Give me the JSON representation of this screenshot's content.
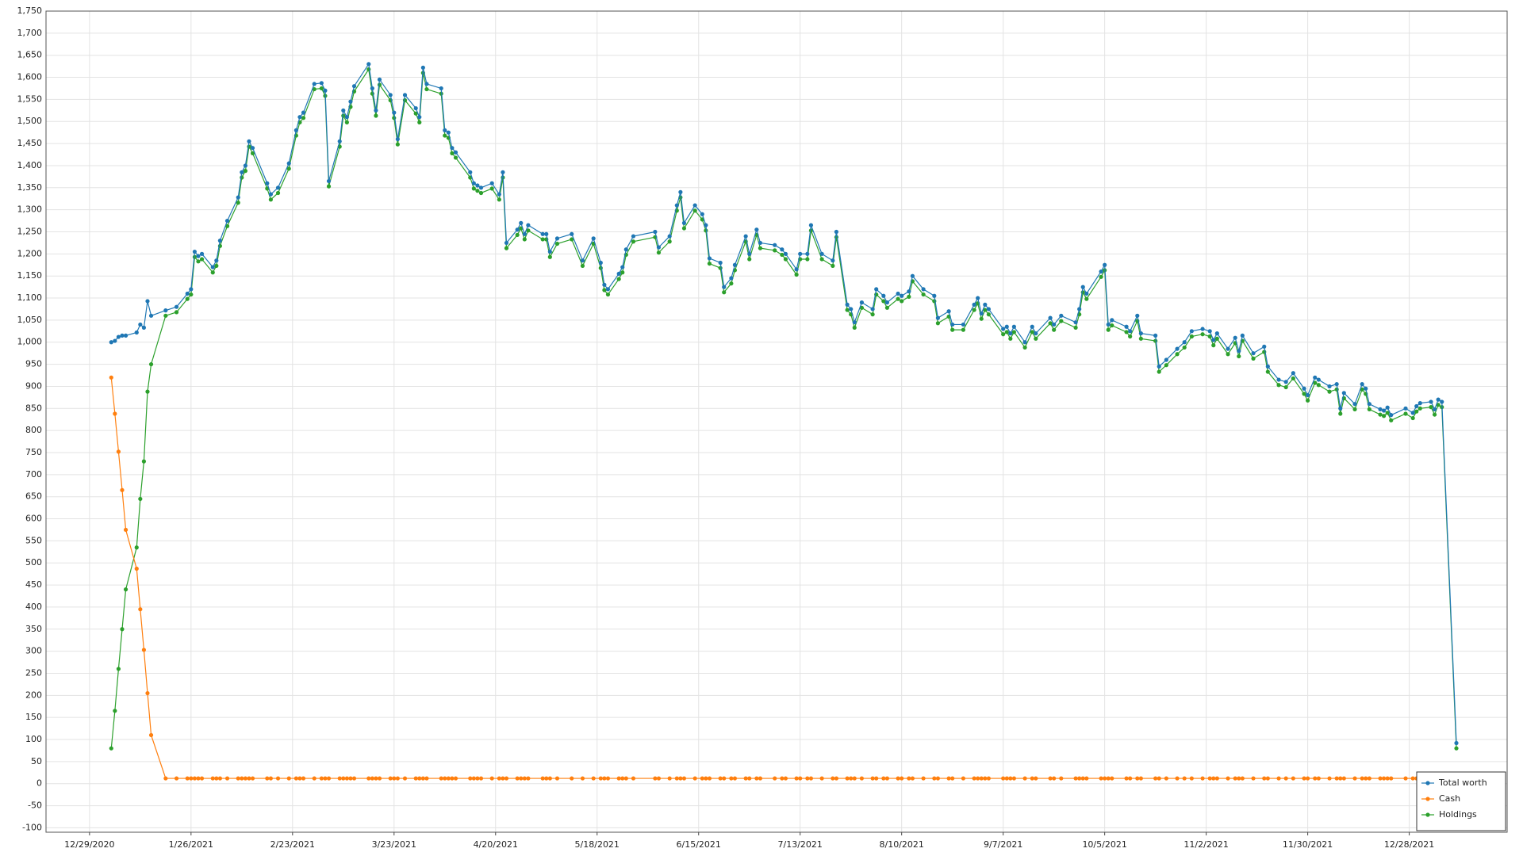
{
  "chart_data": {
    "type": "line",
    "x": [
      "1/4/2021",
      "1/5/2021",
      "1/6/2021",
      "1/7/2021",
      "1/8/2021",
      "1/11/2021",
      "1/12/2021",
      "1/13/2021",
      "1/14/2021",
      "1/15/2021",
      "1/19/2021",
      "1/22/2021",
      "1/25/2021",
      "1/26/2021",
      "1/27/2021",
      "1/28/2021",
      "1/29/2021",
      "2/1/2021",
      "2/2/2021",
      "2/3/2021",
      "2/5/2021",
      "2/8/2021",
      "2/9/2021",
      "2/10/2021",
      "2/11/2021",
      "2/12/2021",
      "2/16/2021",
      "2/17/2021",
      "2/19/2021",
      "2/22/2021",
      "2/24/2021",
      "2/25/2021",
      "2/26/2021",
      "3/1/2021",
      "3/3/2021",
      "3/4/2021",
      "3/5/2021",
      "3/8/2021",
      "3/9/2021",
      "3/10/2021",
      "3/11/2021",
      "3/12/2021",
      "3/16/2021",
      "3/17/2021",
      "3/18/2021",
      "3/19/2021",
      "3/22/2021",
      "3/23/2021",
      "3/24/2021",
      "3/26/2021",
      "3/29/2021",
      "3/30/2021",
      "3/31/2021",
      "4/1/2021",
      "4/5/2021",
      "4/6/2021",
      "4/7/2021",
      "4/8/2021",
      "4/9/2021",
      "4/13/2021",
      "4/14/2021",
      "4/15/2021",
      "4/16/2021",
      "4/19/2021",
      "4/21/2021",
      "4/22/2021",
      "4/23/2021",
      "4/26/2021",
      "4/27/2021",
      "4/28/2021",
      "4/29/2021",
      "5/3/2021",
      "5/4/2021",
      "5/5/2021",
      "5/7/2021",
      "5/11/2021",
      "5/14/2021",
      "5/17/2021",
      "5/19/2021",
      "5/20/2021",
      "5/21/2021",
      "5/24/2021",
      "5/25/2021",
      "5/26/2021",
      "5/28/2021",
      "6/3/2021",
      "6/4/2021",
      "6/7/2021",
      "6/9/2021",
      "6/10/2021",
      "6/11/2021",
      "6/14/2021",
      "6/16/2021",
      "6/17/2021",
      "6/18/2021",
      "6/21/2021",
      "6/22/2021",
      "6/24/2021",
      "6/25/2021",
      "6/28/2021",
      "6/29/2021",
      "7/1/2021",
      "7/2/2021",
      "7/6/2021",
      "7/8/2021",
      "7/9/2021",
      "7/12/2021",
      "7/13/2021",
      "7/15/2021",
      "7/16/2021",
      "7/19/2021",
      "7/22/2021",
      "7/23/2021",
      "7/26/2021",
      "7/27/2021",
      "7/28/2021",
      "7/30/2021",
      "8/2/2021",
      "8/3/2021",
      "8/5/2021",
      "8/6/2021",
      "8/9/2021",
      "8/10/2021",
      "8/12/2021",
      "8/13/2021",
      "8/16/2021",
      "8/19/2021",
      "8/20/2021",
      "8/23/2021",
      "8/24/2021",
      "8/27/2021",
      "8/30/2021",
      "8/31/2021",
      "9/1/2021",
      "9/2/2021",
      "9/3/2021",
      "9/7/2021",
      "9/8/2021",
      "9/9/2021",
      "9/10/2021",
      "9/13/2021",
      "9/15/2021",
      "9/16/2021",
      "9/20/2021",
      "9/21/2021",
      "9/23/2021",
      "9/27/2021",
      "9/28/2021",
      "9/29/2021",
      "9/30/2021",
      "10/4/2021",
      "10/5/2021",
      "10/6/2021",
      "10/7/2021",
      "10/11/2021",
      "10/12/2021",
      "10/14/2021",
      "10/15/2021",
      "10/19/2021",
      "10/20/2021",
      "10/22/2021",
      "10/25/2021",
      "10/27/2021",
      "10/29/2021",
      "11/1/2021",
      "11/3/2021",
      "11/4/2021",
      "11/5/2021",
      "11/8/2021",
      "11/10/2021",
      "11/11/2021",
      "11/12/2021",
      "11/15/2021",
      "11/18/2021",
      "11/19/2021",
      "11/22/2021",
      "11/24/2021",
      "11/26/2021",
      "11/29/2021",
      "11/30/2021",
      "12/2/2021",
      "12/3/2021",
      "12/6/2021",
      "12/8/2021",
      "12/9/2021",
      "12/10/2021",
      "12/13/2021",
      "12/15/2021",
      "12/16/2021",
      "12/17/2021",
      "12/20/2021",
      "12/21/2021",
      "12/22/2021",
      "12/23/2021",
      "12/27/2021",
      "12/29/2021",
      "12/30/2021",
      "12/31/2021",
      "1/3/2022",
      "1/4/2022",
      "1/5/2022",
      "1/6/2022",
      "1/10/2022"
    ],
    "series": [
      {
        "name": "Total worth",
        "color": "#1f77b4",
        "values": [
          1000,
          1003,
          1012,
          1015,
          1015,
          1022,
          1040,
          1033,
          1093,
          1060,
          1072,
          1080,
          1110,
          1120,
          1205,
          1195,
          1200,
          1170,
          1185,
          1230,
          1275,
          1328,
          1385,
          1400,
          1455,
          1440,
          1360,
          1335,
          1350,
          1405,
          1480,
          1510,
          1520,
          1585,
          1587,
          1570,
          1365,
          1455,
          1525,
          1510,
          1545,
          1580,
          1630,
          1575,
          1525,
          1595,
          1560,
          1520,
          1460,
          1560,
          1530,
          1510,
          1622,
          1585,
          1575,
          1480,
          1475,
          1440,
          1430,
          1385,
          1360,
          1355,
          1350,
          1360,
          1335,
          1385,
          1225,
          1255,
          1270,
          1245,
          1265,
          1245,
          1245,
          1205,
          1235,
          1245,
          1185,
          1235,
          1180,
          1130,
          1120,
          1155,
          1170,
          1210,
          1240,
          1250,
          1215,
          1240,
          1310,
          1340,
          1270,
          1310,
          1290,
          1265,
          1190,
          1180,
          1125,
          1145,
          1175,
          1240,
          1200,
          1255,
          1225,
          1220,
          1210,
          1200,
          1165,
          1200,
          1200,
          1265,
          1200,
          1185,
          1250,
          1085,
          1075,
          1045,
          1090,
          1075,
          1120,
          1105,
          1090,
          1110,
          1105,
          1115,
          1150,
          1120,
          1105,
          1055,
          1070,
          1040,
          1040,
          1085,
          1100,
          1065,
          1085,
          1075,
          1030,
          1035,
          1020,
          1035,
          1000,
          1035,
          1020,
          1055,
          1040,
          1060,
          1045,
          1075,
          1125,
          1110,
          1160,
          1175,
          1040,
          1050,
          1035,
          1025,
          1060,
          1020,
          1015,
          945,
          960,
          985,
          1000,
          1025,
          1030,
          1025,
          1005,
          1020,
          985,
          1010,
          980,
          1015,
          975,
          990,
          945,
          915,
          910,
          930,
          895,
          880,
          920,
          915,
          900,
          905,
          850,
          885,
          860,
          905,
          895,
          860,
          848,
          845,
          852,
          835,
          850,
          840,
          855,
          862,
          865,
          848,
          870,
          865,
          92
        ]
      },
      {
        "name": "Cash",
        "color": "#ff7f0e",
        "values": [
          920,
          838,
          752,
          665,
          575,
          487,
          395,
          303,
          205,
          110,
          12,
          12,
          12,
          12,
          12,
          12,
          12,
          12,
          12,
          12,
          12,
          12,
          12,
          12,
          12,
          12,
          12,
          12,
          12,
          12,
          12,
          12,
          12,
          12,
          12,
          12,
          12,
          12,
          12,
          12,
          12,
          12,
          12,
          12,
          12,
          12,
          12,
          12,
          12,
          12,
          12,
          12,
          12,
          12,
          12,
          12,
          12,
          12,
          12,
          12,
          12,
          12,
          12,
          12,
          12,
          12,
          12,
          12,
          12,
          12,
          12,
          12,
          12,
          12,
          12,
          12,
          12,
          12,
          12,
          12,
          12,
          12,
          12,
          12,
          12,
          12,
          12,
          12,
          12,
          12,
          12,
          12,
          12,
          12,
          12,
          12,
          12,
          12,
          12,
          12,
          12,
          12,
          12,
          12,
          12,
          12,
          12,
          12,
          12,
          12,
          12,
          12,
          12,
          12,
          12,
          12,
          12,
          12,
          12,
          12,
          12,
          12,
          12,
          12,
          12,
          12,
          12,
          12,
          12,
          12,
          12,
          12,
          12,
          12,
          12,
          12,
          12,
          12,
          12,
          12,
          12,
          12,
          12,
          12,
          12,
          12,
          12,
          12,
          12,
          12,
          12,
          12,
          12,
          12,
          12,
          12,
          12,
          12,
          12,
          12,
          12,
          12,
          12,
          12,
          12,
          12,
          12,
          12,
          12,
          12,
          12,
          12,
          12,
          12,
          12,
          12,
          12,
          12,
          12,
          12,
          12,
          12,
          12,
          12,
          12,
          12,
          12,
          12,
          12,
          12,
          12,
          12,
          12,
          12,
          12,
          12,
          12,
          12,
          12,
          12,
          12,
          12,
          12
        ]
      },
      {
        "name": "Holdings",
        "color": "#2ca02c",
        "values": [
          80,
          165,
          260,
          350,
          440,
          535,
          645,
          730,
          888,
          950,
          1060,
          1068,
          1098,
          1108,
          1193,
          1183,
          1188,
          1158,
          1173,
          1218,
          1263,
          1316,
          1373,
          1388,
          1443,
          1428,
          1348,
          1323,
          1338,
          1393,
          1468,
          1498,
          1508,
          1573,
          1575,
          1558,
          1353,
          1443,
          1513,
          1498,
          1533,
          1568,
          1618,
          1563,
          1513,
          1583,
          1548,
          1508,
          1448,
          1548,
          1518,
          1498,
          1610,
          1573,
          1563,
          1468,
          1463,
          1428,
          1418,
          1373,
          1348,
          1343,
          1338,
          1348,
          1323,
          1373,
          1213,
          1243,
          1258,
          1233,
          1253,
          1233,
          1233,
          1193,
          1223,
          1233,
          1173,
          1223,
          1168,
          1118,
          1108,
          1143,
          1158,
          1198,
          1228,
          1238,
          1203,
          1228,
          1298,
          1328,
          1258,
          1298,
          1278,
          1253,
          1178,
          1168,
          1113,
          1133,
          1163,
          1228,
          1188,
          1243,
          1213,
          1208,
          1198,
          1188,
          1153,
          1188,
          1188,
          1253,
          1188,
          1173,
          1238,
          1073,
          1063,
          1033,
          1078,
          1063,
          1108,
          1093,
          1078,
          1098,
          1093,
          1103,
          1138,
          1108,
          1093,
          1043,
          1058,
          1028,
          1028,
          1073,
          1088,
          1053,
          1073,
          1063,
          1018,
          1023,
          1008,
          1023,
          988,
          1023,
          1008,
          1043,
          1028,
          1048,
          1033,
          1063,
          1113,
          1098,
          1148,
          1163,
          1028,
          1038,
          1023,
          1013,
          1048,
          1008,
          1003,
          933,
          948,
          973,
          988,
          1013,
          1018,
          1013,
          993,
          1008,
          973,
          998,
          968,
          1003,
          963,
          978,
          933,
          903,
          898,
          918,
          883,
          868,
          908,
          903,
          888,
          893,
          838,
          873,
          848,
          893,
          883,
          848,
          836,
          833,
          840,
          823,
          838,
          828,
          843,
          850,
          853,
          836,
          858,
          853,
          80
        ]
      }
    ],
    "xlim": [
      "12/17/2020",
      "1/24/2022"
    ],
    "xticks": [
      "12/29/2020",
      "1/26/2021",
      "2/23/2021",
      "3/23/2021",
      "4/20/2021",
      "5/18/2021",
      "6/15/2021",
      "7/13/2021",
      "8/10/2021",
      "9/7/2021",
      "10/5/2021",
      "11/2/2021",
      "11/30/2021",
      "12/28/2021"
    ],
    "ylim": [
      -110,
      1750
    ],
    "yticks": [
      -100,
      -50,
      0,
      50,
      100,
      150,
      200,
      250,
      300,
      350,
      400,
      450,
      500,
      550,
      600,
      650,
      700,
      750,
      800,
      850,
      900,
      950,
      {
        "value": 1000,
        "label": "1,000"
      },
      {
        "value": 1050,
        "label": "1,050"
      },
      {
        "value": 1100,
        "label": "1,100"
      },
      {
        "value": 1150,
        "label": "1,150"
      },
      {
        "value": 1200,
        "label": "1,200"
      },
      {
        "value": 1250,
        "label": "1,250"
      },
      {
        "value": 1300,
        "label": "1,300"
      },
      {
        "value": 1350,
        "label": "1,350"
      },
      {
        "value": 1400,
        "label": "1,400"
      },
      {
        "value": 1450,
        "label": "1,450"
      },
      {
        "value": 1500,
        "label": "1,500"
      },
      {
        "value": 1550,
        "label": "1,550"
      },
      {
        "value": 1600,
        "label": "1,600"
      },
      {
        "value": 1650,
        "label": "1,650"
      },
      {
        "value": 1700,
        "label": "1,700"
      },
      {
        "value": 1750,
        "label": "1,750"
      }
    ],
    "grid": true,
    "legend": "lower right"
  }
}
